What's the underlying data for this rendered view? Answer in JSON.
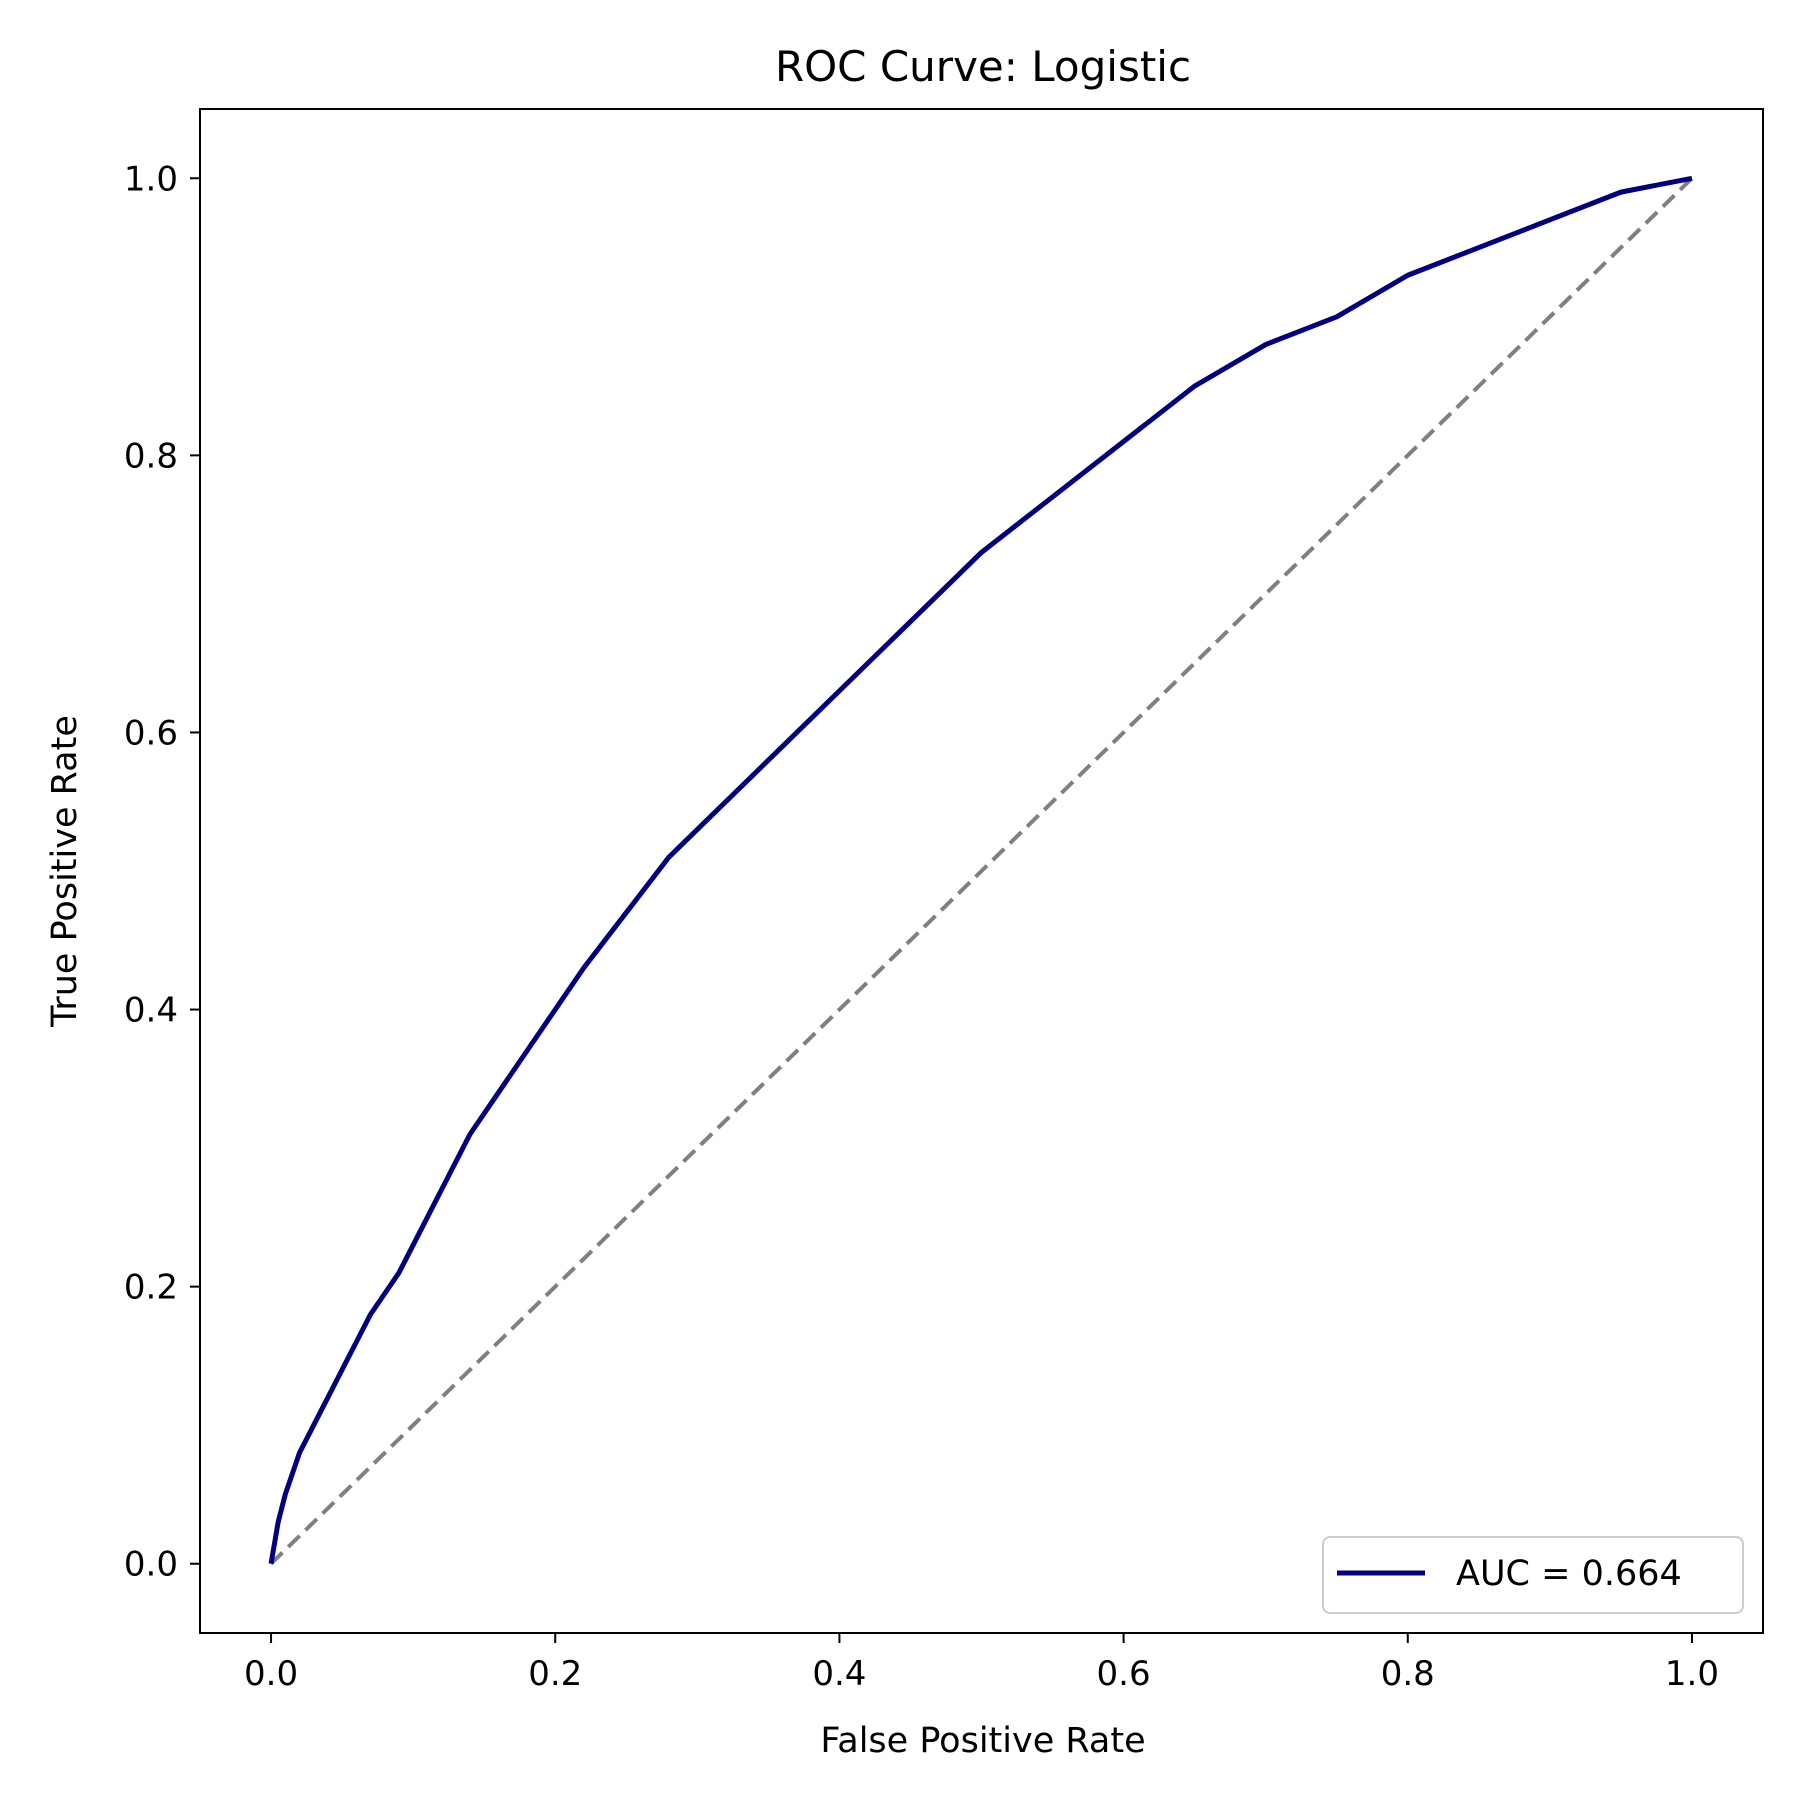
{
  "chart_data": {
    "type": "line",
    "title": "ROC Curve: Logistic",
    "xlabel": "False Positive Rate",
    "ylabel": "True Positive Rate",
    "xlim": [
      -0.05,
      1.05
    ],
    "ylim": [
      -0.05,
      1.05
    ],
    "xticks": [
      "0.0",
      "0.2",
      "0.4",
      "0.6",
      "0.8",
      "1.0"
    ],
    "yticks": [
      "0.0",
      "0.2",
      "0.4",
      "0.6",
      "0.8",
      "1.0"
    ],
    "grid": false,
    "legend": {
      "position": "lower right",
      "entries": [
        "AUC = 0.664"
      ]
    },
    "series": [
      {
        "name": "AUC = 0.664",
        "color": "#000080",
        "style": "solid",
        "x": [
          0.0,
          0.005,
          0.01,
          0.02,
          0.03,
          0.04,
          0.05,
          0.07,
          0.09,
          0.1,
          0.12,
          0.14,
          0.16,
          0.18,
          0.2,
          0.22,
          0.25,
          0.28,
          0.3,
          0.33,
          0.36,
          0.4,
          0.44,
          0.48,
          0.5,
          0.55,
          0.6,
          0.65,
          0.7,
          0.75,
          0.8,
          0.85,
          0.9,
          0.95,
          1.0
        ],
        "y": [
          0.0,
          0.03,
          0.05,
          0.08,
          0.1,
          0.12,
          0.14,
          0.18,
          0.21,
          0.23,
          0.27,
          0.31,
          0.34,
          0.37,
          0.4,
          0.43,
          0.47,
          0.51,
          0.53,
          0.56,
          0.59,
          0.63,
          0.67,
          0.71,
          0.73,
          0.77,
          0.81,
          0.85,
          0.88,
          0.9,
          0.93,
          0.95,
          0.97,
          0.99,
          1.0
        ]
      },
      {
        "name": "",
        "color": "#808080",
        "style": "dashed",
        "x": [
          0,
          1
        ],
        "y": [
          0,
          1
        ]
      }
    ]
  }
}
